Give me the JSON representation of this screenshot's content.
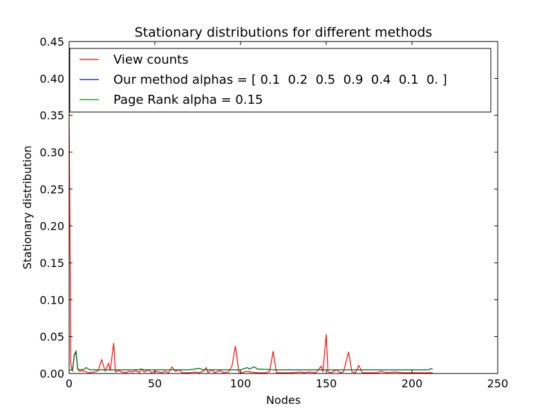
{
  "chart_data": {
    "type": "line",
    "title": "Stationary distributions for different methods",
    "xlabel": "Nodes",
    "ylabel": "Stationary distribution",
    "xlim": [
      0,
      250
    ],
    "ylim": [
      0,
      0.45
    ],
    "xticks": [
      "0",
      "50",
      "100",
      "150",
      "200",
      "250"
    ],
    "yticks": [
      "0.00",
      "0.05",
      "0.10",
      "0.15",
      "0.20",
      "0.25",
      "0.30",
      "0.35",
      "0.40",
      "0.45"
    ],
    "grid": false,
    "legend_position": "top",
    "series": [
      {
        "name": "View counts",
        "color": "#ff0000",
        "x": [
          0,
          1,
          2,
          3,
          4,
          5,
          6,
          8,
          10,
          12,
          15,
          17,
          19,
          21,
          23,
          24,
          26,
          27,
          29,
          31,
          33,
          35,
          37,
          39,
          41,
          42,
          44,
          46,
          48,
          50,
          52,
          54,
          56,
          58,
          60,
          62,
          64,
          66,
          70,
          74,
          76,
          78,
          80,
          81,
          83,
          85,
          88,
          90,
          93,
          95,
          97,
          99,
          101,
          103,
          106,
          109,
          112,
          115,
          117,
          119,
          121,
          125,
          130,
          135,
          137,
          140,
          144,
          147,
          148,
          150,
          151,
          153,
          156,
          158,
          160,
          163,
          165,
          167,
          169,
          171,
          175,
          180,
          182,
          185,
          190,
          195,
          200,
          205,
          208,
          210,
          212
        ],
        "y": [
          0.355,
          0.012,
          0.003,
          0.025,
          0.028,
          0.006,
          0.003,
          0.004,
          0.002,
          0.001,
          0.002,
          0.004,
          0.019,
          0.003,
          0.014,
          0.004,
          0.041,
          0.002,
          0.004,
          0.002,
          0.001,
          0.003,
          0.002,
          0.004,
          0.001,
          0.006,
          0.002,
          0.005,
          0.001,
          0.003,
          0.002,
          0.001,
          0.003,
          0.001,
          0.009,
          0.003,
          0.005,
          0.001,
          0.001,
          0.002,
          0.001,
          0.003,
          0.008,
          0.001,
          0.005,
          0.001,
          0.004,
          0.001,
          0.002,
          0.01,
          0.037,
          0.002,
          0.001,
          0.003,
          0.002,
          0.001,
          0.001,
          0.001,
          0.003,
          0.03,
          0.001,
          0.001,
          0.001,
          0.002,
          0.001,
          0.002,
          0.001,
          0.01,
          0.002,
          0.053,
          0.002,
          0.001,
          0.005,
          0.001,
          0.002,
          0.029,
          0.002,
          0.001,
          0.011,
          0.001,
          0.001,
          0.001,
          0.003,
          0.001,
          0.002,
          0.001,
          0.001,
          0.001,
          0.001,
          0.001,
          0.001
        ]
      },
      {
        "name": "Our method alphas = [ 0.1  0.2  0.5  0.9  0.4  0.1  0. ]",
        "color": "#0000ff",
        "x": [
          0,
          2,
          3,
          4,
          5,
          7,
          9,
          10,
          12,
          20,
          30,
          40,
          42,
          44,
          50,
          60,
          70,
          76,
          78,
          80,
          90,
          100,
          104,
          105,
          107,
          108,
          110,
          120,
          140,
          160,
          180,
          200,
          210,
          211,
          212
        ],
        "y": [
          0.004,
          0.006,
          0.024,
          0.03,
          0.006,
          0.005,
          0.006,
          0.008,
          0.005,
          0.005,
          0.005,
          0.005,
          0.006,
          0.005,
          0.005,
          0.005,
          0.005,
          0.007,
          0.005,
          0.005,
          0.005,
          0.005,
          0.008,
          0.006,
          0.008,
          0.009,
          0.006,
          0.005,
          0.005,
          0.005,
          0.005,
          0.005,
          0.005,
          0.007,
          0.006
        ]
      },
      {
        "name": "Page Rank alpha = 0.15",
        "color": "#008000",
        "x": [
          0,
          2,
          3,
          4,
          5,
          7,
          9,
          10,
          12,
          20,
          30,
          40,
          42,
          44,
          50,
          60,
          70,
          76,
          78,
          80,
          90,
          100,
          104,
          105,
          107,
          108,
          110,
          120,
          140,
          160,
          180,
          200,
          210,
          211,
          212
        ],
        "y": [
          0.004,
          0.006,
          0.025,
          0.031,
          0.006,
          0.005,
          0.006,
          0.008,
          0.005,
          0.005,
          0.005,
          0.005,
          0.006,
          0.005,
          0.005,
          0.005,
          0.005,
          0.007,
          0.005,
          0.005,
          0.005,
          0.005,
          0.008,
          0.006,
          0.008,
          0.009,
          0.006,
          0.005,
          0.005,
          0.005,
          0.005,
          0.005,
          0.005,
          0.007,
          0.006
        ]
      }
    ]
  }
}
